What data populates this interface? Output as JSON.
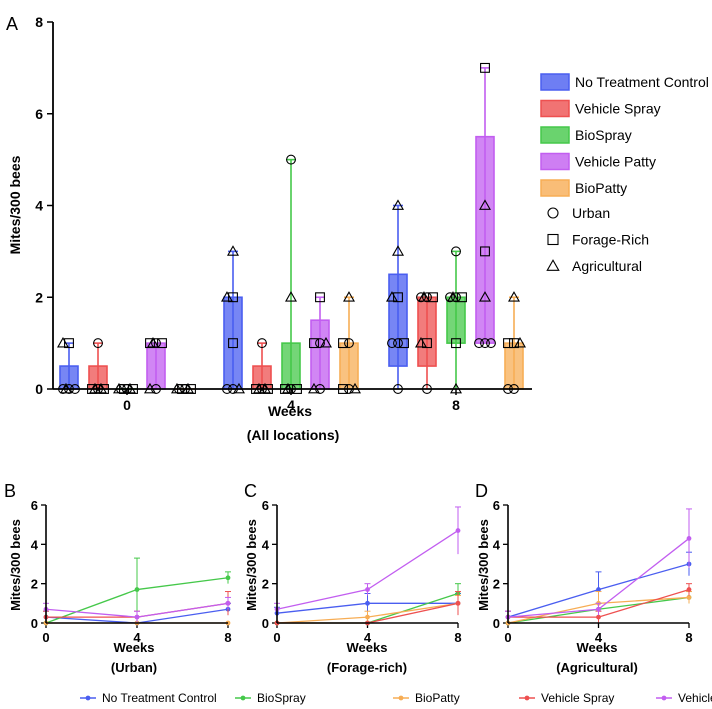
{
  "chart_data": [
    {
      "panel_label": "A",
      "type": "box",
      "xlabel": "Weeks",
      "xlabel_sub": "(All locations)",
      "ylabel": "Mites/300 bees",
      "ylim": [
        0,
        8
      ],
      "yticks": [
        "0",
        "2",
        "4",
        "6",
        "8"
      ],
      "categories": [
        "0",
        "4",
        "8"
      ],
      "series": [
        {
          "name": "No Treatment Control",
          "color": "#4a5ef0",
          "boxes": [
            {
              "week": "0",
              "min": 0,
              "q1": 0,
              "q3": 0.5,
              "max": 1,
              "points": [
                [
                  "circle",
                  0
                ],
                [
                  "circle",
                  0
                ],
                [
                  "circle",
                  0
                ],
                [
                  "square",
                  1
                ],
                [
                  "triangle",
                  1
                ],
                [
                  "triangle",
                  0
                ]
              ]
            },
            {
              "week": "4",
              "min": 0,
              "q1": 0,
              "q3": 2,
              "max": 3,
              "points": [
                [
                  "circle",
                  0
                ],
                [
                  "circle",
                  0
                ],
                [
                  "square",
                  1
                ],
                [
                  "square",
                  2
                ],
                [
                  "triangle",
                  3
                ],
                [
                  "triangle",
                  2
                ],
                [
                  "triangle",
                  0
                ]
              ]
            },
            {
              "week": "8",
              "min": 0,
              "q1": 0.5,
              "q3": 2.5,
              "max": 4,
              "points": [
                [
                  "circle",
                  0
                ],
                [
                  "circle",
                  1
                ],
                [
                  "circle",
                  1
                ],
                [
                  "square",
                  2
                ],
                [
                  "square",
                  1
                ],
                [
                  "triangle",
                  4
                ],
                [
                  "triangle",
                  3
                ],
                [
                  "triangle",
                  2
                ]
              ]
            }
          ]
        },
        {
          "name": "Vehicle Spray",
          "color": "#ee5050",
          "boxes": [
            {
              "week": "0",
              "min": 0,
              "q1": 0,
              "q3": 0.5,
              "max": 1,
              "points": [
                [
                  "circle",
                  1
                ],
                [
                  "circle",
                  0
                ],
                [
                  "square",
                  0
                ],
                [
                  "square",
                  0
                ],
                [
                  "triangle",
                  0
                ],
                [
                  "triangle",
                  0
                ]
              ]
            },
            {
              "week": "4",
              "min": 0,
              "q1": 0,
              "q3": 0.5,
              "max": 1,
              "points": [
                [
                  "circle",
                  1
                ],
                [
                  "circle",
                  0
                ],
                [
                  "square",
                  0
                ],
                [
                  "square",
                  0
                ],
                [
                  "triangle",
                  0
                ],
                [
                  "triangle",
                  0
                ]
              ]
            },
            {
              "week": "8",
              "min": 0,
              "q1": 0.5,
              "q3": 2,
              "max": 2,
              "points": [
                [
                  "circle",
                  0
                ],
                [
                  "circle",
                  2
                ],
                [
                  "circle",
                  2
                ],
                [
                  "square",
                  2
                ],
                [
                  "square",
                  1
                ],
                [
                  "triangle",
                  2
                ],
                [
                  "triangle",
                  1
                ]
              ]
            }
          ]
        },
        {
          "name": "BioSpray",
          "color": "#45c84a",
          "boxes": [
            {
              "week": "0",
              "min": 0,
              "q1": 0,
              "q3": 0,
              "max": 0,
              "points": [
                [
                  "circle",
                  0
                ],
                [
                  "circle",
                  0
                ],
                [
                  "square",
                  0
                ],
                [
                  "square",
                  0
                ],
                [
                  "triangle",
                  0
                ],
                [
                  "triangle",
                  0
                ]
              ]
            },
            {
              "week": "4",
              "min": 0,
              "q1": 0,
              "q3": 1,
              "max": 5,
              "points": [
                [
                  "circle",
                  5
                ],
                [
                  "circle",
                  0
                ],
                [
                  "square",
                  0
                ],
                [
                  "square",
                  0
                ],
                [
                  "triangle",
                  2
                ],
                [
                  "triangle",
                  0
                ]
              ]
            },
            {
              "week": "8",
              "min": 0,
              "q1": 1,
              "q3": 2,
              "max": 3,
              "points": [
                [
                  "circle",
                  3
                ],
                [
                  "circle",
                  2
                ],
                [
                  "circle",
                  2
                ],
                [
                  "square",
                  2
                ],
                [
                  "square",
                  1
                ],
                [
                  "triangle",
                  2
                ],
                [
                  "triangle",
                  0
                ]
              ]
            }
          ]
        },
        {
          "name": "Vehicle Patty",
          "color": "#c25ef0",
          "boxes": [
            {
              "week": "0",
              "min": 0,
              "q1": 0,
              "q3": 1,
              "max": 1,
              "points": [
                [
                  "circle",
                  1
                ],
                [
                  "circle",
                  0
                ],
                [
                  "square",
                  1
                ],
                [
                  "square",
                  1
                ],
                [
                  "triangle",
                  0
                ],
                [
                  "triangle",
                  1
                ]
              ]
            },
            {
              "week": "4",
              "min": 0,
              "q1": 0,
              "q3": 1.5,
              "max": 2,
              "points": [
                [
                  "circle",
                  0
                ],
                [
                  "circle",
                  1
                ],
                [
                  "square",
                  2
                ],
                [
                  "square",
                  1
                ],
                [
                  "triangle",
                  1
                ],
                [
                  "triangle",
                  0
                ]
              ]
            },
            {
              "week": "8",
              "min": 1,
              "q1": 1,
              "q3": 5.5,
              "max": 7,
              "points": [
                [
                  "circle",
                  1
                ],
                [
                  "circle",
                  1
                ],
                [
                  "circle",
                  1
                ],
                [
                  "square",
                  7
                ],
                [
                  "square",
                  3
                ],
                [
                  "triangle",
                  4
                ],
                [
                  "triangle",
                  2
                ]
              ]
            }
          ]
        },
        {
          "name": "BioPatty",
          "color": "#f7ad55",
          "boxes": [
            {
              "week": "0",
              "min": 0,
              "q1": 0,
              "q3": 0,
              "max": 0,
              "points": [
                [
                  "circle",
                  0
                ],
                [
                  "circle",
                  0
                ],
                [
                  "square",
                  0
                ],
                [
                  "square",
                  0
                ],
                [
                  "triangle",
                  0
                ],
                [
                  "triangle",
                  0
                ]
              ]
            },
            {
              "week": "4",
              "min": 0,
              "q1": 0,
              "q3": 1,
              "max": 2,
              "points": [
                [
                  "circle",
                  0
                ],
                [
                  "circle",
                  1
                ],
                [
                  "square",
                  1
                ],
                [
                  "square",
                  0
                ],
                [
                  "triangle",
                  2
                ],
                [
                  "triangle",
                  0
                ]
              ]
            },
            {
              "week": "8",
              "min": 0,
              "q1": 0,
              "q3": 1,
              "max": 2,
              "points": [
                [
                  "circle",
                  0
                ],
                [
                  "circle",
                  0
                ],
                [
                  "square",
                  1
                ],
                [
                  "square",
                  1
                ],
                [
                  "triangle",
                  2
                ],
                [
                  "triangle",
                  1
                ]
              ]
            }
          ]
        }
      ],
      "legend_groups": [
        "No Treatment Control",
        "Vehicle Spray",
        "BioSpray",
        "Vehicle Patty",
        "BioPatty"
      ],
      "legend_shapes": [
        {
          "shape": "circle",
          "label": "Urban"
        },
        {
          "shape": "square",
          "label": "Forage-Rich"
        },
        {
          "shape": "triangle",
          "label": "Agricultural"
        }
      ]
    },
    {
      "panel_label": "B",
      "type": "line",
      "xlabel": "Weeks",
      "xlabel_sub": "(Urban)",
      "ylabel": "Mites/300 bees",
      "ylim": [
        0,
        6
      ],
      "yticks": [
        "0",
        "2",
        "4",
        "6"
      ],
      "x": [
        0,
        4,
        8
      ],
      "series": [
        {
          "name": "No Treatment Control",
          "values": [
            0.3,
            0.0,
            0.7
          ],
          "err": [
            0.3,
            0,
            0.3
          ]
        },
        {
          "name": "BioSpray",
          "values": [
            0.0,
            1.7,
            2.3
          ],
          "err": [
            0,
            1.6,
            0.3
          ]
        },
        {
          "name": "BioPatty",
          "values": [
            0.0,
            0.0,
            0.0
          ],
          "err": [
            0,
            0,
            0
          ]
        },
        {
          "name": "Vehicle Spray",
          "values": [
            0.3,
            0.3,
            1.0
          ],
          "err": [
            0.3,
            0.3,
            0.6
          ]
        },
        {
          "name": "Vehicle Patty",
          "values": [
            0.7,
            0.3,
            1.0
          ],
          "err": [
            0.3,
            0.3,
            0.3
          ]
        }
      ]
    },
    {
      "panel_label": "C",
      "type": "line",
      "xlabel": "Weeks",
      "xlabel_sub": "(Forage-rich)",
      "ylabel": "Mites/300 bees",
      "ylim": [
        0,
        6
      ],
      "yticks": [
        "0",
        "2",
        "4",
        "6"
      ],
      "x": [
        0,
        4,
        8
      ],
      "series": [
        {
          "name": "No Treatment Control",
          "values": [
            0.5,
            1.0,
            1.0
          ],
          "err": [
            0.3,
            0.5,
            0.5
          ]
        },
        {
          "name": "BioSpray",
          "values": [
            0.0,
            0.0,
            1.5
          ],
          "err": [
            0,
            0,
            0.5
          ]
        },
        {
          "name": "BioPatty",
          "values": [
            0.0,
            0.3,
            1.0
          ],
          "err": [
            0,
            0.3,
            0.4
          ]
        },
        {
          "name": "Vehicle Spray",
          "values": [
            0.0,
            0.0,
            1.0
          ],
          "err": [
            0,
            0,
            0.6
          ]
        },
        {
          "name": "Vehicle Patty",
          "values": [
            0.7,
            1.7,
            4.7
          ],
          "err": [
            0.3,
            0.3,
            1.2
          ]
        }
      ]
    },
    {
      "panel_label": "D",
      "type": "line",
      "xlabel": "Weeks",
      "xlabel_sub": "(Agricultural)",
      "ylabel": "Mites/300 bees",
      "ylim": [
        0,
        6
      ],
      "yticks": [
        "0",
        "2",
        "4",
        "6"
      ],
      "x": [
        0,
        4,
        8
      ],
      "series": [
        {
          "name": "No Treatment Control",
          "values": [
            0.3,
            1.7,
            3.0
          ],
          "err": [
            0.3,
            0.9,
            0.6
          ]
        },
        {
          "name": "BioSpray",
          "values": [
            0.0,
            0.7,
            1.3
          ],
          "err": [
            0,
            0.3,
            0.3
          ]
        },
        {
          "name": "BioPatty",
          "values": [
            0.0,
            1.0,
            1.3
          ],
          "err": [
            0,
            0.6,
            0.3
          ]
        },
        {
          "name": "Vehicle Spray",
          "values": [
            0.3,
            0.3,
            1.7
          ],
          "err": [
            0.3,
            0.3,
            0.3
          ]
        },
        {
          "name": "Vehicle Patty",
          "values": [
            0.3,
            0.7,
            4.3
          ],
          "err": [
            0.3,
            0.3,
            1.5
          ]
        }
      ]
    }
  ],
  "line_legend": [
    {
      "name": "No Treatment Control",
      "color": "#4a5ef0"
    },
    {
      "name": "BioSpray",
      "color": "#45c84a"
    },
    {
      "name": "BioPatty",
      "color": "#f7ad55"
    },
    {
      "name": "Vehicle Spray",
      "color": "#ee5050"
    },
    {
      "name": "Vehicle Patty",
      "color": "#c25ef0"
    }
  ]
}
